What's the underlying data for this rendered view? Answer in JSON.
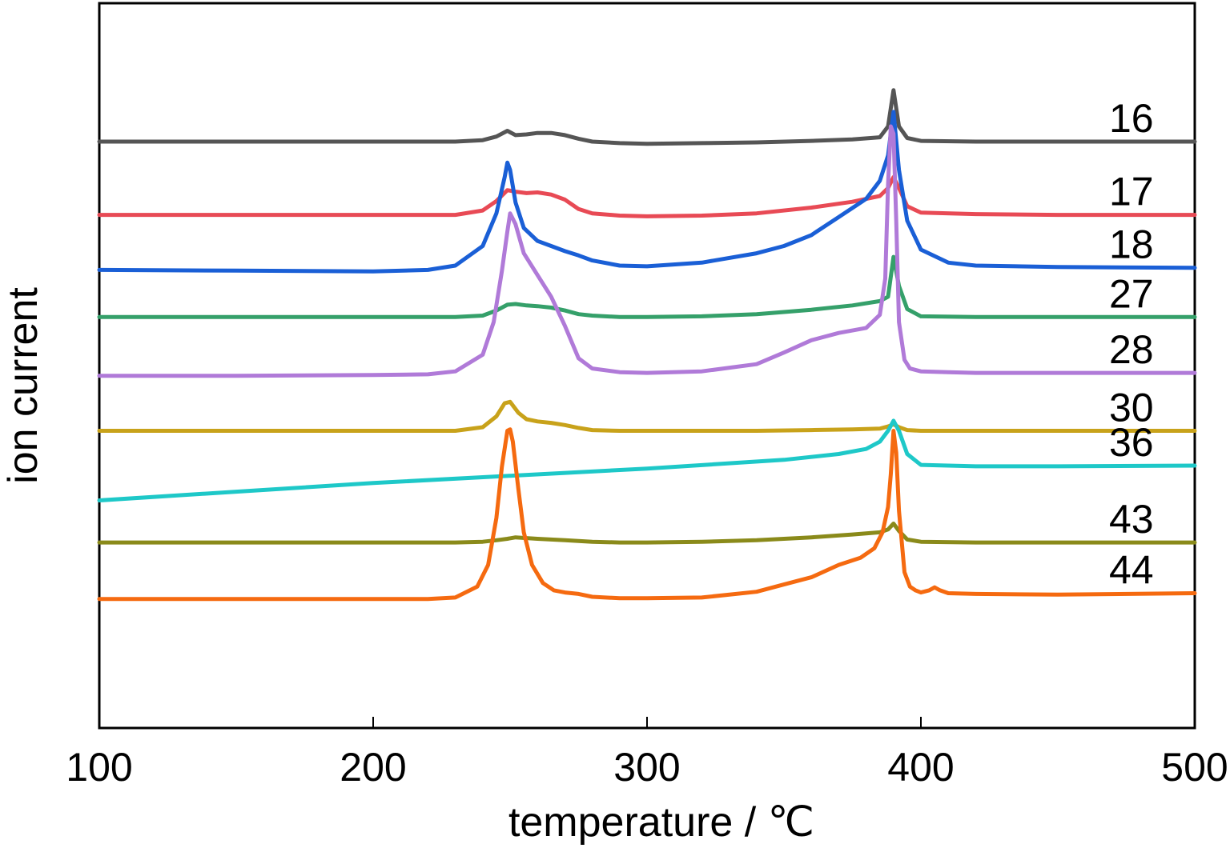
{
  "chart_data": {
    "type": "line",
    "xlabel": "temperature / ℃",
    "ylabel": "ion current",
    "xlim": [
      100,
      500
    ],
    "ylim": [
      0,
      100
    ],
    "x_ticks": [
      "100",
      "200",
      "300",
      "400",
      "500"
    ],
    "y_ticks": [],
    "grid": false,
    "legend": "inline labels at right end of each curve",
    "series": [
      {
        "name": "16",
        "color": "#555555",
        "x": [
          100,
          150,
          200,
          230,
          240,
          245,
          249,
          252,
          256,
          260,
          265,
          270,
          275,
          280,
          290,
          300,
          320,
          340,
          360,
          375,
          385,
          388,
          390,
          392,
          395,
          400,
          420,
          450,
          480,
          500
        ],
        "y": [
          80.9,
          80.9,
          80.9,
          80.9,
          81.1,
          81.6,
          82.4,
          81.8,
          81.9,
          82.1,
          82.1,
          81.8,
          81.3,
          80.9,
          80.7,
          80.6,
          80.7,
          80.8,
          81.0,
          81.2,
          81.5,
          83.0,
          88.0,
          83.0,
          81.4,
          81.0,
          80.9,
          80.9,
          80.9,
          80.9
        ]
      },
      {
        "name": "17",
        "color": "#e84a55",
        "x": [
          100,
          150,
          200,
          230,
          240,
          245,
          249,
          252,
          256,
          260,
          265,
          270,
          275,
          280,
          290,
          300,
          320,
          340,
          360,
          375,
          385,
          388,
          390,
          392,
          395,
          400,
          420,
          450,
          480,
          500
        ],
        "y": [
          70.8,
          70.8,
          70.8,
          70.8,
          71.4,
          72.7,
          74.2,
          74.0,
          73.8,
          73.9,
          73.6,
          72.9,
          71.6,
          71.0,
          70.7,
          70.6,
          70.7,
          71.0,
          71.8,
          72.6,
          73.4,
          74.5,
          76.0,
          74.5,
          72.0,
          71.1,
          70.9,
          70.8,
          70.8,
          70.8
        ]
      },
      {
        "name": "18",
        "color": "#1a5fd6",
        "x": [
          100,
          150,
          200,
          220,
          230,
          240,
          245,
          248,
          249,
          250,
          252,
          255,
          260,
          265,
          270,
          275,
          280,
          290,
          300,
          320,
          340,
          350,
          360,
          370,
          380,
          385,
          388,
          390,
          392,
          395,
          400,
          410,
          420,
          450,
          500
        ],
        "y": [
          63.2,
          63.1,
          63.0,
          63.2,
          63.8,
          66.5,
          71.0,
          76.0,
          78.0,
          77.0,
          72.5,
          69.0,
          67.2,
          66.5,
          65.8,
          65.2,
          64.5,
          63.8,
          63.7,
          64.2,
          65.5,
          66.5,
          68.0,
          70.5,
          73.0,
          75.5,
          79.0,
          85.0,
          77.0,
          70.0,
          66.0,
          64.2,
          63.8,
          63.6,
          63.5
        ]
      },
      {
        "name": "27",
        "color": "#35a06a",
        "x": [
          100,
          150,
          200,
          230,
          240,
          245,
          249,
          252,
          256,
          260,
          265,
          270,
          275,
          280,
          290,
          300,
          320,
          340,
          360,
          375,
          385,
          388,
          390,
          392,
          395,
          400,
          420,
          450,
          480,
          500
        ],
        "y": [
          56.7,
          56.7,
          56.7,
          56.7,
          56.9,
          57.6,
          58.4,
          58.5,
          58.3,
          58.2,
          58.0,
          57.6,
          57.1,
          56.9,
          56.7,
          56.7,
          56.8,
          57.1,
          57.7,
          58.3,
          58.9,
          59.5,
          65.0,
          61.0,
          57.8,
          56.8,
          56.7,
          56.7,
          56.7,
          56.7
        ]
      },
      {
        "name": "28",
        "color": "#b07ad8",
        "x": [
          100,
          150,
          200,
          220,
          230,
          240,
          244,
          247,
          249,
          250,
          252,
          255,
          260,
          265,
          270,
          275,
          280,
          290,
          300,
          320,
          340,
          350,
          360,
          370,
          380,
          385,
          387,
          388,
          389,
          390,
          391,
          392,
          394,
          396,
          400,
          410,
          420,
          450,
          500
        ],
        "y": [
          48.6,
          48.6,
          48.7,
          48.8,
          49.2,
          51.5,
          56.0,
          63.0,
          68.5,
          71.0,
          69.5,
          65.5,
          62.5,
          59.5,
          55.5,
          51.0,
          49.6,
          49.1,
          49.0,
          49.2,
          50.2,
          51.8,
          53.5,
          54.5,
          55.2,
          57.0,
          62.0,
          75.0,
          83.0,
          82.0,
          70.0,
          56.0,
          50.8,
          49.6,
          49.2,
          49.1,
          49.0,
          49.0,
          49.0
        ]
      },
      {
        "name": "30",
        "color": "#c8a21a",
        "x": [
          100,
          150,
          200,
          230,
          240,
          245,
          248,
          250,
          253,
          256,
          260,
          265,
          270,
          275,
          280,
          290,
          300,
          320,
          340,
          360,
          375,
          385,
          388,
          390,
          392,
          395,
          400,
          420,
          450,
          500
        ],
        "y": [
          41.0,
          41.0,
          41.0,
          41.0,
          41.5,
          43.0,
          44.8,
          45.0,
          43.5,
          42.6,
          42.3,
          42.1,
          41.8,
          41.4,
          41.1,
          41.0,
          41.0,
          41.0,
          41.0,
          41.1,
          41.2,
          41.3,
          41.6,
          41.9,
          41.5,
          41.1,
          41.0,
          41.0,
          41.0,
          41.0
        ]
      },
      {
        "name": "36",
        "color": "#1ec8c8",
        "x": [
          100,
          150,
          200,
          250,
          300,
          350,
          370,
          380,
          385,
          388,
          390,
          392,
          395,
          400,
          420,
          450,
          500
        ],
        "y": [
          31.4,
          32.6,
          33.8,
          34.8,
          35.8,
          37.0,
          37.8,
          38.5,
          39.5,
          41.0,
          42.4,
          41.0,
          37.8,
          36.3,
          36.1,
          36.1,
          36.2
        ]
      },
      {
        "name": "43",
        "color": "#8a8a1a",
        "x": [
          100,
          150,
          200,
          230,
          240,
          245,
          249,
          252,
          256,
          260,
          265,
          270,
          275,
          280,
          290,
          300,
          320,
          340,
          360,
          375,
          385,
          388,
          390,
          392,
          395,
          400,
          420,
          450,
          480,
          500
        ],
        "y": [
          25.6,
          25.6,
          25.6,
          25.6,
          25.7,
          25.9,
          26.1,
          26.3,
          26.2,
          26.1,
          26.0,
          25.9,
          25.8,
          25.7,
          25.6,
          25.6,
          25.7,
          25.9,
          26.3,
          26.7,
          27.0,
          27.4,
          28.2,
          27.2,
          26.0,
          25.7,
          25.6,
          25.6,
          25.6,
          25.6
        ]
      },
      {
        "name": "44",
        "color": "#f56a10",
        "x": [
          100,
          150,
          200,
          220,
          230,
          238,
          242,
          245,
          247,
          249,
          250,
          251,
          253,
          255,
          258,
          262,
          266,
          270,
          275,
          280,
          290,
          300,
          320,
          340,
          350,
          360,
          370,
          378,
          383,
          386,
          388,
          389,
          390,
          391,
          392,
          394,
          396,
          398,
          400,
          403,
          405,
          407,
          410,
          420,
          450,
          500
        ],
        "y": [
          17.8,
          17.8,
          17.8,
          17.8,
          18.0,
          19.5,
          22.5,
          29.0,
          36.0,
          41.0,
          41.2,
          39.5,
          33.0,
          27.0,
          22.5,
          20.0,
          19.0,
          18.7,
          18.5,
          18.1,
          17.9,
          17.9,
          18.0,
          18.8,
          19.8,
          20.8,
          22.5,
          23.5,
          24.8,
          27.0,
          30.5,
          35.0,
          41.0,
          38.0,
          30.0,
          21.5,
          19.5,
          19.0,
          18.7,
          19.0,
          19.4,
          19.0,
          18.6,
          18.5,
          18.4,
          18.6
        ]
      }
    ]
  }
}
